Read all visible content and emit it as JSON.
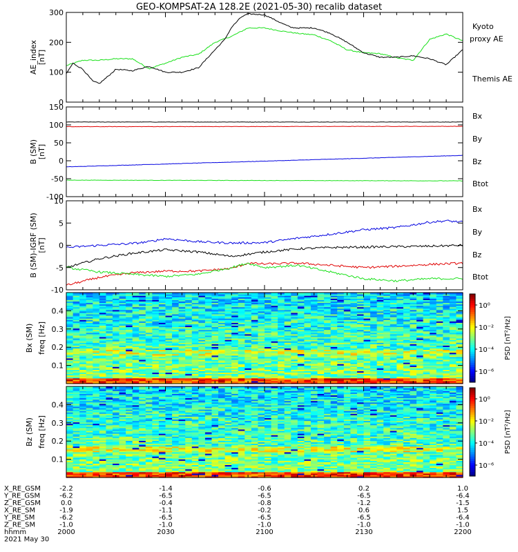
{
  "title": "GEO-KOMPSAT-2A 128.2E (2021-05-30) recalib dataset",
  "colors": {
    "black": "#000000",
    "green": "#18e018",
    "red": "#e00000",
    "blue": "#0000e0"
  },
  "chart_data": [
    {
      "id": "ae",
      "type": "line",
      "ylabel": "AE_index",
      "yunit": "[nT]",
      "ylim": [
        0,
        300
      ],
      "yticks": [
        0,
        100,
        200,
        300
      ],
      "x_minutes": [
        1200,
        1320
      ],
      "series": [
        {
          "name": "Kyoto proxy AE",
          "color": "green",
          "x": [
            1200,
            1205,
            1210,
            1215,
            1220,
            1225,
            1230,
            1235,
            1240,
            1245,
            1250,
            1255,
            1260,
            1265,
            1270,
            1275,
            1280,
            1285,
            1290,
            1295,
            1300,
            1305,
            1310,
            1315,
            1320
          ],
          "y": [
            122,
            140,
            140,
            145,
            145,
            112,
            130,
            150,
            160,
            200,
            220,
            248,
            248,
            238,
            230,
            225,
            205,
            175,
            165,
            162,
            148,
            140,
            210,
            228,
            205
          ]
        },
        {
          "name": "Themis AE",
          "color": "black",
          "x": [
            1200,
            1202,
            1205,
            1208,
            1210,
            1213,
            1215,
            1220,
            1225,
            1230,
            1235,
            1240,
            1245,
            1248,
            1250,
            1253,
            1255,
            1260,
            1265,
            1268,
            1270,
            1275,
            1280,
            1285,
            1290,
            1295,
            1300,
            1305,
            1310,
            1315,
            1320
          ],
          "y": [
            95,
            130,
            110,
            70,
            62,
            90,
            110,
            105,
            120,
            100,
            100,
            115,
            175,
            210,
            250,
            285,
            295,
            292,
            265,
            250,
            248,
            248,
            230,
            200,
            165,
            150,
            150,
            155,
            145,
            125,
            175
          ]
        }
      ],
      "legend": [
        "Kyoto proxy AE",
        "Themis AE"
      ]
    },
    {
      "id": "bsm",
      "type": "line",
      "ylabel": "B (SM)",
      "yunit": "[nT]",
      "ylim": [
        -100,
        150
      ],
      "yticks": [
        -100,
        -50,
        0,
        50,
        100,
        150
      ],
      "x_minutes": [
        1200,
        1320
      ],
      "series": [
        {
          "name": "Btot",
          "color": "black",
          "x": [
            1200,
            1320
          ],
          "y": [
            108,
            108
          ]
        },
        {
          "name": "Bz",
          "color": "red",
          "x": [
            1200,
            1320
          ],
          "y": [
            95,
            96
          ]
        },
        {
          "name": "Bx",
          "color": "blue",
          "x": [
            1200,
            1320
          ],
          "y": [
            -17,
            15
          ]
        },
        {
          "name": "By",
          "color": "green",
          "x": [
            1200,
            1320
          ],
          "y": [
            -54,
            -56
          ]
        }
      ],
      "legend": [
        "Bx",
        "By",
        "Bz",
        "Btot"
      ]
    },
    {
      "id": "bres",
      "type": "line",
      "ylabel": "B (SM)-IGRF (SM)",
      "yunit": "[nT]",
      "ylim": [
        -10,
        10
      ],
      "yticks": [
        -10,
        -5,
        0,
        5,
        10
      ],
      "x_minutes": [
        1200,
        1320
      ],
      "series": [
        {
          "name": "Bx",
          "color": "blue",
          "x": [
            1200,
            1210,
            1220,
            1225,
            1230,
            1240,
            1250,
            1260,
            1270,
            1280,
            1290,
            1300,
            1310,
            1315,
            1320
          ],
          "y": [
            -0.5,
            0,
            0.4,
            0.8,
            1.5,
            0.8,
            0.5,
            0.6,
            1.6,
            2.5,
            3.5,
            4.0,
            5.2,
            5.5,
            5.2
          ]
        },
        {
          "name": "Btot",
          "color": "black",
          "x": [
            1200,
            1210,
            1220,
            1230,
            1240,
            1250,
            1260,
            1270,
            1280,
            1290,
            1300,
            1310,
            1320
          ],
          "y": [
            -5,
            -3,
            -1.8,
            -1.0,
            -1.5,
            -2.5,
            -1.5,
            -0.8,
            -0.5,
            -0.4,
            -0.3,
            -0.2,
            0
          ]
        },
        {
          "name": "Bz",
          "color": "red",
          "x": [
            1200,
            1210,
            1220,
            1230,
            1240,
            1250,
            1255,
            1260,
            1270,
            1280,
            1290,
            1300,
            1310,
            1320
          ],
          "y": [
            -9,
            -7.2,
            -6.2,
            -5.8,
            -5.8,
            -5.2,
            -4.0,
            -4.2,
            -4.0,
            -4.5,
            -5.0,
            -4.7,
            -4.3,
            -4.0
          ]
        },
        {
          "name": "By",
          "color": "green",
          "x": [
            1200,
            1210,
            1220,
            1230,
            1240,
            1250,
            1255,
            1260,
            1270,
            1280,
            1290,
            1300,
            1310,
            1320
          ],
          "y": [
            -5.0,
            -6.0,
            -6.5,
            -7.0,
            -6.5,
            -5.0,
            -4.0,
            -5.0,
            -4.5,
            -6.0,
            -7.5,
            -8.0,
            -7.5,
            -7.5
          ]
        }
      ],
      "legend": [
        "Bx",
        "By",
        "Bz",
        "Btot"
      ]
    },
    {
      "id": "spec_bx",
      "type": "heatmap",
      "ylabel": "Bx (SM)",
      "yunit": "freq [Hz]",
      "ylim": [
        0,
        0.5
      ],
      "yticks": [
        0.1,
        0.2,
        0.3,
        0.4
      ],
      "x_minutes": [
        1200,
        1320
      ],
      "colorbar": {
        "label": "PSD [nT²/Hz]",
        "ticks": [
          "10⁰",
          "10⁻²",
          "10⁻⁴",
          "10⁻⁶"
        ],
        "range": [
          -7,
          1
        ],
        "scale": "log"
      }
    },
    {
      "id": "spec_bz",
      "type": "heatmap",
      "ylabel": "Bz (SM)",
      "yunit": "freq [Hz]",
      "ylim": [
        0,
        0.5
      ],
      "yticks": [
        0.1,
        0.2,
        0.3,
        0.4
      ],
      "x_minutes": [
        1200,
        1320
      ],
      "colorbar": {
        "label": "PSD [nT²/Hz]",
        "ticks": [
          "10⁰",
          "10⁻²",
          "10⁻⁴",
          "10⁻⁶"
        ],
        "range": [
          -7,
          1
        ],
        "scale": "log"
      }
    }
  ],
  "ephemeris": {
    "rows": [
      {
        "label": "X_RE_GSM",
        "values": [
          "-2.2",
          "-1.4",
          "-0.6",
          "0.2",
          "1.0"
        ]
      },
      {
        "label": "Y_RE_GSM",
        "values": [
          "-6.2",
          "-6.5",
          "-6.5",
          "-6.5",
          "-6.4"
        ]
      },
      {
        "label": "Z_RE_GSM",
        "values": [
          "0.0",
          "-0.4",
          "-0.8",
          "-1.2",
          "-1.5"
        ]
      },
      {
        "label": "X_RE_SM",
        "values": [
          "-1.9",
          "-1.1",
          "-0.2",
          "0.6",
          "1.5"
        ]
      },
      {
        "label": "Y_RE_SM",
        "values": [
          "-6.2",
          "-6.5",
          "-6.5",
          "-6.5",
          "-6.4"
        ]
      },
      {
        "label": "Z_RE_SM",
        "values": [
          "-1.0",
          "-1.0",
          "-1.0",
          "-1.0",
          "-1.0"
        ]
      },
      {
        "label": "hhmm",
        "values": [
          "2000",
          "2030",
          "2100",
          "2130",
          "2200"
        ]
      }
    ],
    "date": "2021 May 30"
  }
}
